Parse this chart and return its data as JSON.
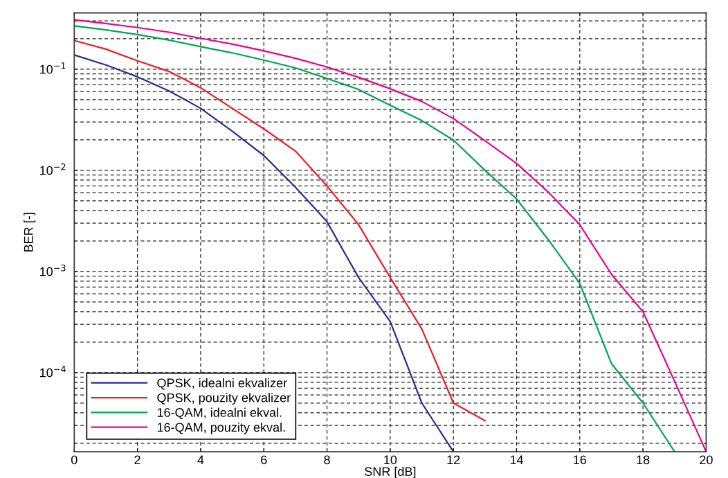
{
  "chart_data": {
    "type": "line",
    "xlabel": "SNR [dB]",
    "ylabel": "BER [-]",
    "x": [
      0,
      1,
      2,
      3,
      4,
      5,
      6,
      7,
      8,
      9,
      10,
      11,
      12,
      13,
      14,
      15,
      16,
      17,
      18,
      19,
      20
    ],
    "series": [
      {
        "name": "QPSK, idealni ekvalizer",
        "color": "#2b2b96",
        "values": [
          0.138,
          0.11,
          0.084,
          0.061,
          0.041,
          0.0244,
          0.014,
          0.0068,
          0.0031,
          0.00087,
          0.00032,
          5e-05,
          1.65e-05,
          null,
          null,
          null,
          null,
          null,
          null,
          null,
          null
        ]
      },
      {
        "name": "QPSK, pouzity ekvalizer",
        "color": "#ee1c25",
        "values": [
          0.192,
          0.158,
          0.121,
          0.095,
          0.0655,
          0.041,
          0.0257,
          0.0155,
          0.007,
          0.0029,
          0.00087,
          0.00027,
          5e-05,
          3.35e-05,
          null,
          null,
          null,
          null,
          null,
          null,
          null
        ]
      },
      {
        "name": "16-QAM, idealni ekval.",
        "color": "#00a650",
        "values": [
          0.268,
          0.245,
          0.22,
          0.194,
          0.167,
          0.145,
          0.123,
          0.103,
          0.081,
          0.063,
          0.044,
          0.031,
          0.0199,
          0.01,
          0.0052,
          0.00207,
          0.00076,
          0.000123,
          5e-05,
          1.65e-05,
          null
        ]
      },
      {
        "name": "16-QAM, pouzity ekval.",
        "color": "#ec008c",
        "values": [
          0.307,
          0.283,
          0.258,
          0.232,
          0.202,
          0.177,
          0.152,
          0.128,
          0.105,
          0.083,
          0.064,
          0.048,
          0.0325,
          0.0196,
          0.0117,
          0.0061,
          0.0029,
          0.00094,
          0.0004,
          8.2e-05,
          1.65e-05
        ]
      }
    ],
    "log": "y",
    "xlim": [
      0,
      20
    ],
    "ylim": [
      1.65e-05,
      0.36
    ],
    "xticks": [
      0,
      2,
      4,
      6,
      8,
      10,
      12,
      14,
      16,
      18,
      20
    ],
    "yticks": [
      {
        "value": 0.1,
        "label": "10$^{−1}$"
      },
      {
        "value": 0.01,
        "label": "10$^{−2}$"
      },
      {
        "value": 0.001,
        "label": "10$^{−3}$"
      },
      {
        "value": 0.0001,
        "label": "10$^{−4}$"
      }
    ],
    "grid": true,
    "legend": "bottom left",
    "line_style": "solid",
    "marker": "none"
  }
}
